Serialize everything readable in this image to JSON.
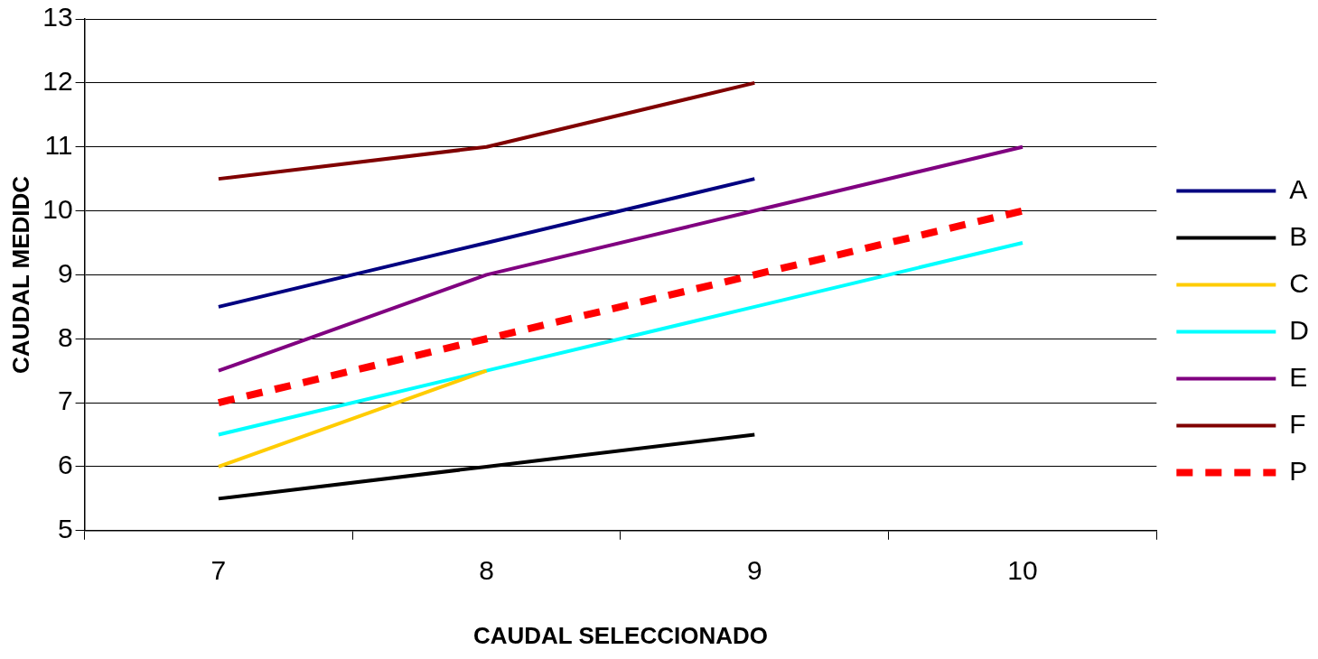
{
  "chart_data": {
    "type": "line",
    "xlabel": "CAUDAL SELECCIONADO",
    "ylabel": "CAUDAL MEDIDC",
    "categories": [
      "7",
      "8",
      "9",
      "10"
    ],
    "series": [
      {
        "name": "A",
        "color": "#000080",
        "values": [
          8.5,
          9.5,
          10.5,
          null
        ]
      },
      {
        "name": "B",
        "color": "#000000",
        "values": [
          5.5,
          6,
          6.5,
          null
        ]
      },
      {
        "name": "C",
        "color": "#ffcc00",
        "values": [
          6,
          7.5,
          null,
          null
        ]
      },
      {
        "name": "D",
        "color": "#00ffff",
        "values": [
          6.5,
          7.5,
          8.5,
          9.5
        ]
      },
      {
        "name": "E",
        "color": "#800080",
        "values": [
          7.5,
          9,
          10,
          11
        ]
      },
      {
        "name": "F",
        "color": "#800000",
        "values": [
          10.5,
          11,
          12,
          null
        ]
      },
      {
        "name": "P",
        "color": "#ff0000",
        "values": [
          7,
          8,
          9,
          10
        ],
        "line_style": "dashed"
      }
    ],
    "ylim": [
      5,
      13
    ],
    "yticks": [
      5,
      6,
      7,
      8,
      9,
      10,
      11,
      12,
      13
    ],
    "grid": "y",
    "legend": "right",
    "marker": "none",
    "line_style": "solid"
  }
}
